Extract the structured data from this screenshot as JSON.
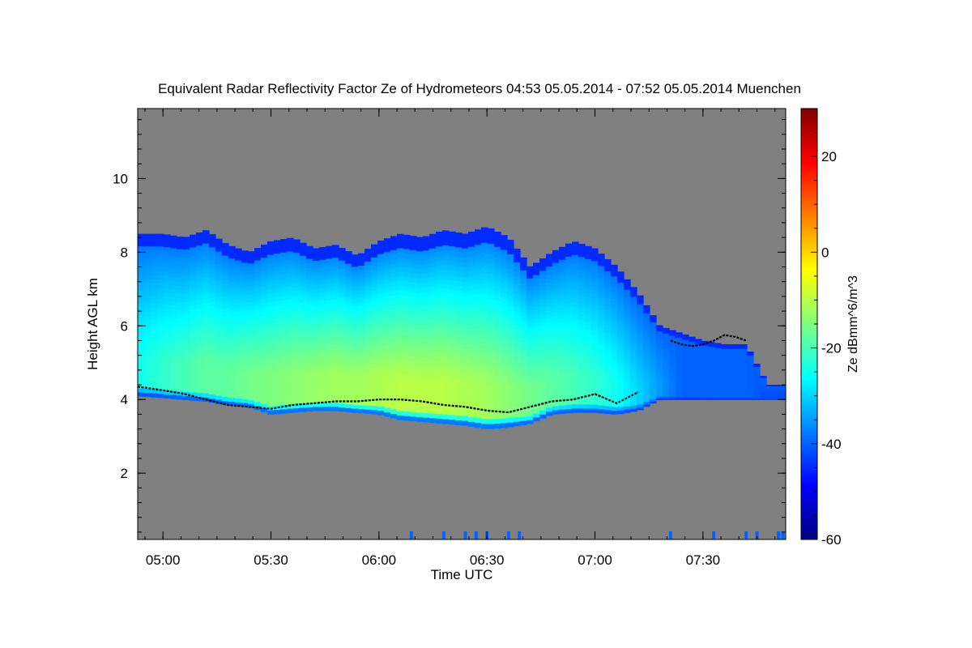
{
  "chart_data": {
    "type": "heatmap",
    "title": "Equivalent Radar Reflectivity Factor Ze of Hydrometeors   04:53 05.05.2014 - 07:52 05.05.2014 Muenchen",
    "xlabel": "Time UTC",
    "ylabel": "Height AGL km",
    "colorbar_label": "Ze dBmm^6/m^3",
    "xlim": [
      4.883,
      7.883
    ],
    "ylim": [
      0.2,
      11.9
    ],
    "x_ticks": [
      {
        "value": 5.0,
        "label": "05:00"
      },
      {
        "value": 5.5,
        "label": "05:30"
      },
      {
        "value": 6.0,
        "label": "06:00"
      },
      {
        "value": 6.5,
        "label": "06:30"
      },
      {
        "value": 7.0,
        "label": "07:00"
      },
      {
        "value": 7.5,
        "label": "07:30"
      }
    ],
    "y_ticks": [
      {
        "value": 2,
        "label": "2"
      },
      {
        "value": 4,
        "label": "4"
      },
      {
        "value": 6,
        "label": "6"
      },
      {
        "value": 8,
        "label": "8"
      },
      {
        "value": 10,
        "label": "10"
      }
    ],
    "colorbar_range": [
      -60,
      30
    ],
    "colorbar_ticks": [
      {
        "value": -60,
        "label": "-60"
      },
      {
        "value": -40,
        "label": "-40"
      },
      {
        "value": -20,
        "label": "-20"
      },
      {
        "value": 0,
        "label": "0"
      },
      {
        "value": 20,
        "label": "20"
      }
    ],
    "colormap": [
      "#00007f",
      "#0000ff",
      "#007fff",
      "#00ffff",
      "#7fff7f",
      "#ffff00",
      "#ff7f00",
      "#ff0000",
      "#7f0000"
    ],
    "background_color": "#808080",
    "cloud_layer": {
      "time": [
        4.883,
        5.0,
        5.1,
        5.2,
        5.3,
        5.4,
        5.5,
        5.6,
        5.7,
        5.8,
        5.9,
        6.0,
        6.1,
        6.2,
        6.3,
        6.4,
        6.5,
        6.6,
        6.7,
        6.8,
        6.9,
        7.0,
        7.1,
        7.2,
        7.3,
        7.4,
        7.5,
        7.6,
        7.7,
        7.8,
        7.883
      ],
      "top_km": [
        8.5,
        8.5,
        8.4,
        8.6,
        8.2,
        8.0,
        8.3,
        8.4,
        8.1,
        8.2,
        7.9,
        8.3,
        8.5,
        8.4,
        8.6,
        8.5,
        8.7,
        8.4,
        7.6,
        8.0,
        8.3,
        8.1,
        7.6,
        6.9,
        6.0,
        5.8,
        5.6,
        5.5,
        5.5,
        4.4,
        4.4
      ],
      "base_km": [
        4.1,
        4.05,
        4.0,
        3.95,
        3.85,
        3.8,
        3.6,
        3.65,
        3.7,
        3.7,
        3.65,
        3.6,
        3.45,
        3.4,
        3.35,
        3.3,
        3.2,
        3.25,
        3.35,
        3.6,
        3.65,
        3.65,
        3.6,
        3.7,
        4.0,
        4.0,
        4.0,
        4.0,
        4.0,
        4.0,
        4.0
      ],
      "peak_reflectivity_dbz": [
        -25,
        -22,
        -20,
        -18,
        -18,
        -16,
        -15,
        -14,
        -13,
        -12,
        -12,
        -11,
        -10,
        -10,
        -10,
        -11,
        -12,
        -14,
        -16,
        -18,
        -20,
        -22,
        -25,
        -30,
        -35,
        -40,
        -40,
        -40,
        -40,
        -42,
        -42
      ]
    },
    "melting_layer_line": {
      "time": [
        4.883,
        5.0,
        5.1,
        5.2,
        5.3,
        5.4,
        5.5,
        5.6,
        5.7,
        5.8,
        5.9,
        6.0,
        6.1,
        6.2,
        6.3,
        6.4,
        6.5,
        6.6,
        6.7,
        6.8,
        6.9,
        7.0,
        7.1,
        7.2
      ],
      "height_km": [
        4.35,
        4.25,
        4.15,
        4.0,
        3.85,
        3.8,
        3.75,
        3.85,
        3.9,
        3.95,
        3.95,
        4.0,
        4.0,
        3.95,
        3.85,
        3.8,
        3.7,
        3.65,
        3.8,
        3.95,
        4.0,
        4.15,
        3.9,
        4.2
      ]
    },
    "upper_line": {
      "time": [
        7.35,
        7.4,
        7.45,
        7.5,
        7.55,
        7.6,
        7.65,
        7.7
      ],
      "height_km": [
        5.6,
        5.5,
        5.45,
        5.5,
        5.6,
        5.75,
        5.7,
        5.6
      ]
    },
    "ground_clutter_times": [
      6.15,
      6.3,
      6.4,
      6.45,
      6.5,
      6.6,
      6.65,
      7.35,
      7.55,
      7.7,
      7.75,
      7.85,
      7.87
    ]
  }
}
